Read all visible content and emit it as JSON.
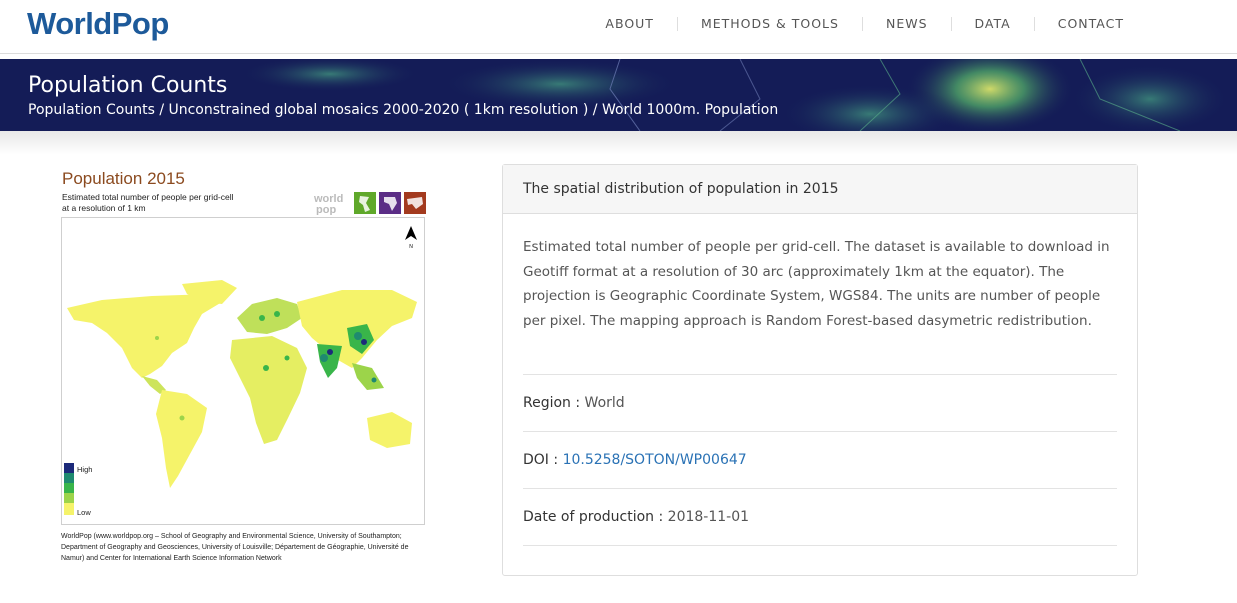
{
  "header": {
    "logo": "WorldPop",
    "nav": [
      {
        "label": "ABOUT"
      },
      {
        "label": "METHODS & TOOLS"
      },
      {
        "label": "NEWS"
      },
      {
        "label": "DATA"
      },
      {
        "label": "CONTACT"
      }
    ]
  },
  "banner": {
    "title": "Population Counts",
    "breadcrumb": "Population Counts / Unconstrained global mosaics 2000-2020 ( 1km resolution ) / World 1000m. Population"
  },
  "figure": {
    "title": "Population 2015",
    "subtitle_line1": "Estimated total number of people per grid-cell",
    "subtitle_line2": "at a resolution of 1 km",
    "logo_text_1": "world",
    "logo_text_2": "pop",
    "north_label": "N",
    "legend_high": "High",
    "legend_low": "Low",
    "credit": "WorldPop (www.worldpop.org – School of Geography and Environmental Science, University of Southampton; Department of Geography and Geosciences, University of Louisville; Département de Géographie, Université de Namur) and Center for International Earth Science Information Network",
    "colors": {
      "low": "#f5f36a",
      "mid1": "#9cd44a",
      "mid2": "#39b54a",
      "mid3": "#1f8a70",
      "high": "#1c2a7a"
    }
  },
  "panel": {
    "title": "The spatial distribution of population in 2015",
    "description": "Estimated total number of people per grid-cell. The dataset is available to download in Geotiff format at a resolution of 30 arc (approximately 1km at the equator). The projection is Geographic Coordinate System, WGS84. The units are number of people per pixel. The mapping approach is Random Forest-based dasymetric redistribution.",
    "rows": [
      {
        "label": "Region :",
        "value": "World"
      },
      {
        "label": "DOI :",
        "value": "10.5258/SOTON/WP00647"
      },
      {
        "label": "Date of production :",
        "value": "2018-11-01"
      }
    ]
  }
}
